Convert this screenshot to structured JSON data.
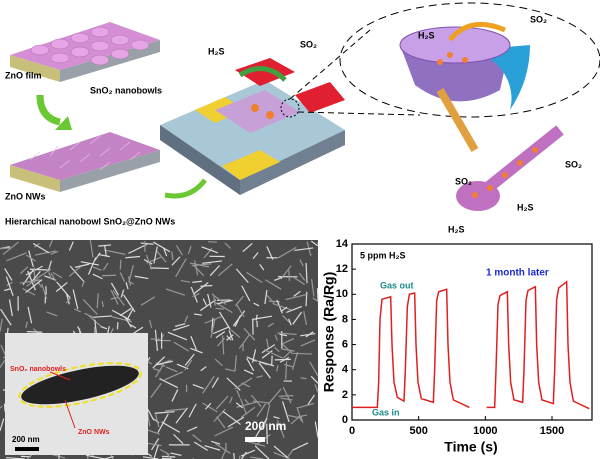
{
  "schematic": {
    "film_labels": [
      "ZnO film",
      "SnO₂ nanobowls"
    ],
    "nw_label": "ZnO NWs",
    "caption": "Hierarchical nanobowl SnO₂@ZnO NWs",
    "device_gases": [
      "H₂S",
      "SO₂"
    ],
    "bowl_gases": [
      "H₂S",
      "SO₂"
    ],
    "nanowire_gases": [
      "SO₂",
      "SO₂",
      "H₂S",
      "H₂S"
    ]
  },
  "sem_image": {
    "scale_bar": "200 nm",
    "inset": {
      "labels": [
        "SnO₂ nanobowls",
        "ZnO NWs"
      ],
      "scale_bar": "200 nm"
    }
  },
  "chart_data": {
    "type": "line",
    "x_label": "Time (s)",
    "y_label": "Response (Ra/Rg)",
    "annotations": [
      "5 ppm H₂S",
      "Gas out",
      "Gas in",
      "1 month later"
    ],
    "x": [
      0,
      190,
      200,
      210,
      225,
      290,
      300,
      315,
      340,
      390,
      400,
      415,
      430,
      470,
      480,
      495,
      520,
      610,
      620,
      635,
      650,
      710,
      720,
      735,
      760,
      880,
      900,
      1010,
      1070,
      1080,
      1095,
      1110,
      1165,
      1175,
      1190,
      1215,
      1280,
      1290,
      1305,
      1320,
      1375,
      1385,
      1400,
      1425,
      1510,
      1520,
      1535,
      1550,
      1610,
      1620,
      1635,
      1660,
      1780
    ],
    "values": [
      1.0,
      1.0,
      3,
      8,
      9.6,
      9.8,
      6,
      3,
      1.8,
      1.5,
      4,
      9,
      10.0,
      10.1,
      6,
      3,
      1.7,
      1.4,
      4,
      9.5,
      10.2,
      10.4,
      6,
      3,
      1.6,
      1.0,
      null,
      1.0,
      1.0,
      4,
      9.2,
      9.9,
      10.2,
      6,
      3,
      1.6,
      1.4,
      4,
      9.5,
      10.3,
      10.6,
      6,
      3,
      1.6,
      1.3,
      4,
      9.6,
      10.5,
      11.0,
      6,
      3,
      1.5,
      0.9
    ],
    "color": "#e02020",
    "xlim": [
      0,
      1800
    ],
    "xticks": [
      0,
      500,
      1000,
      1500
    ],
    "ylim": [
      0,
      14
    ],
    "yticks": [
      0,
      2,
      4,
      6,
      8,
      10,
      12,
      14
    ]
  }
}
